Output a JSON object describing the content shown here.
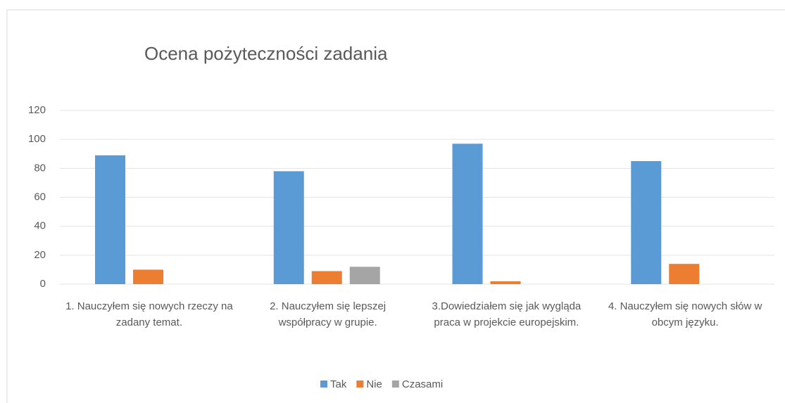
{
  "chart_data": {
    "type": "bar",
    "title": "Ocena pożyteczności zadania",
    "categories": [
      "1. Nauczyłem się nowych rzeczy na zadany temat.",
      "2. Nauczyłem się lepszej współpracy w grupie.",
      "3.Dowiedziałem się jak wygląda praca w projekcie europejskim.",
      "4. Nauczyłem się nowych słów w obcym języku."
    ],
    "series": [
      {
        "name": "Tak",
        "color": "#5b9bd5",
        "values": [
          89,
          78,
          97,
          85
        ]
      },
      {
        "name": "Nie",
        "color": "#ed7d31",
        "values": [
          10,
          9,
          2,
          14
        ]
      },
      {
        "name": "Czasami",
        "color": "#a5a5a5",
        "values": [
          null,
          12,
          null,
          null
        ]
      }
    ],
    "ylim": [
      0,
      120
    ],
    "yticks": [
      0,
      20,
      40,
      60,
      80,
      100,
      120
    ],
    "grid": true,
    "legend": "bottom"
  }
}
